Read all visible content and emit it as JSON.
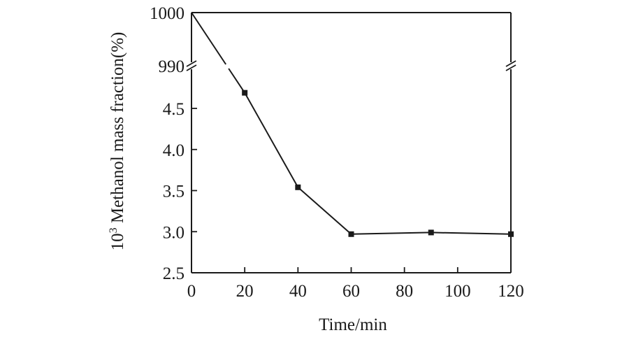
{
  "chart_data": {
    "type": "line",
    "title": "",
    "xlabel": "Time/min",
    "ylabel_prefix": "10",
    "ylabel_sup": "3",
    "ylabel_main": " Methanol mass fraction(%)",
    "x_ticks": [
      "0",
      "20",
      "40",
      "60",
      "80",
      "100",
      "120"
    ],
    "y_ticks_lower": [
      "2.5",
      "3.0",
      "3.5",
      "4.0",
      "4.5"
    ],
    "y_ticks_upper": [
      "990",
      "1000"
    ],
    "xlim": [
      0,
      120
    ],
    "ylim_lower": [
      2.5,
      5.0
    ],
    "ylim_upper": [
      990,
      1000
    ],
    "axis_break": true,
    "grid": false,
    "series": [
      {
        "x": [
          0,
          20,
          40,
          60,
          90,
          120
        ],
        "y": [
          1000,
          4.69,
          3.54,
          2.97,
          2.99,
          2.97
        ],
        "marker": "square",
        "color": "#1a1a1a"
      }
    ]
  }
}
